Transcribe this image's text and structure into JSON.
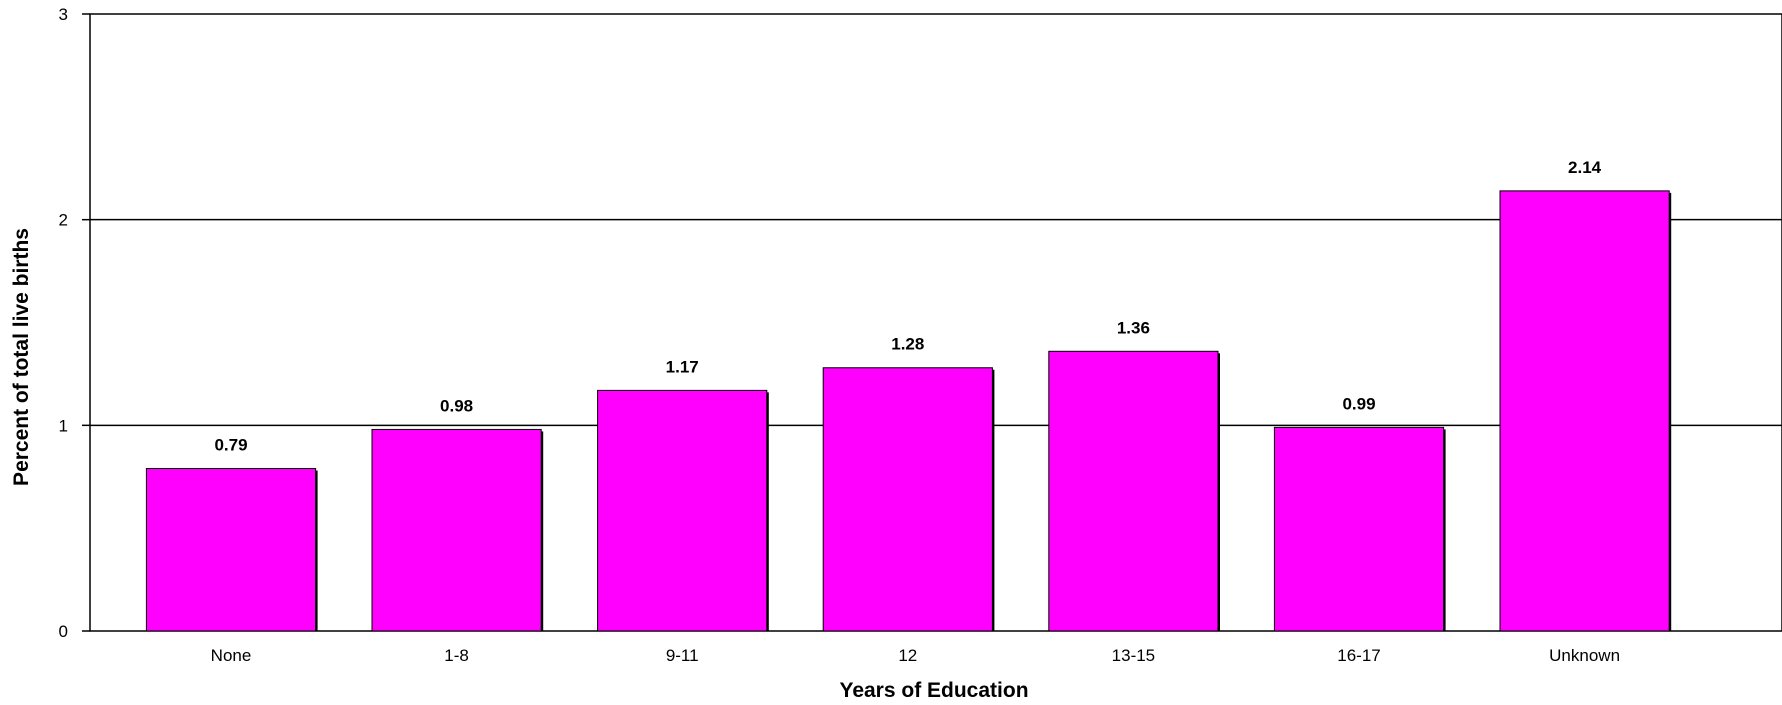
{
  "chart_data": {
    "type": "bar",
    "categories": [
      "None",
      "1-8",
      "9-11",
      "12",
      "13-15",
      "16-17",
      "Unknown"
    ],
    "values": [
      0.79,
      0.98,
      1.17,
      1.28,
      1.36,
      0.99,
      2.14
    ],
    "data_labels": [
      "0.79",
      "0.98",
      "1.17",
      "1.28",
      "1.36",
      "0.99",
      "2.14"
    ],
    "xlabel": "Years of Education",
    "ylabel": "Percent of total live births",
    "ylim": [
      0,
      3
    ],
    "yticks": [
      0,
      1,
      2,
      3
    ],
    "grid": true,
    "bar_color": "#ff00ff",
    "border_color": "#000000"
  }
}
